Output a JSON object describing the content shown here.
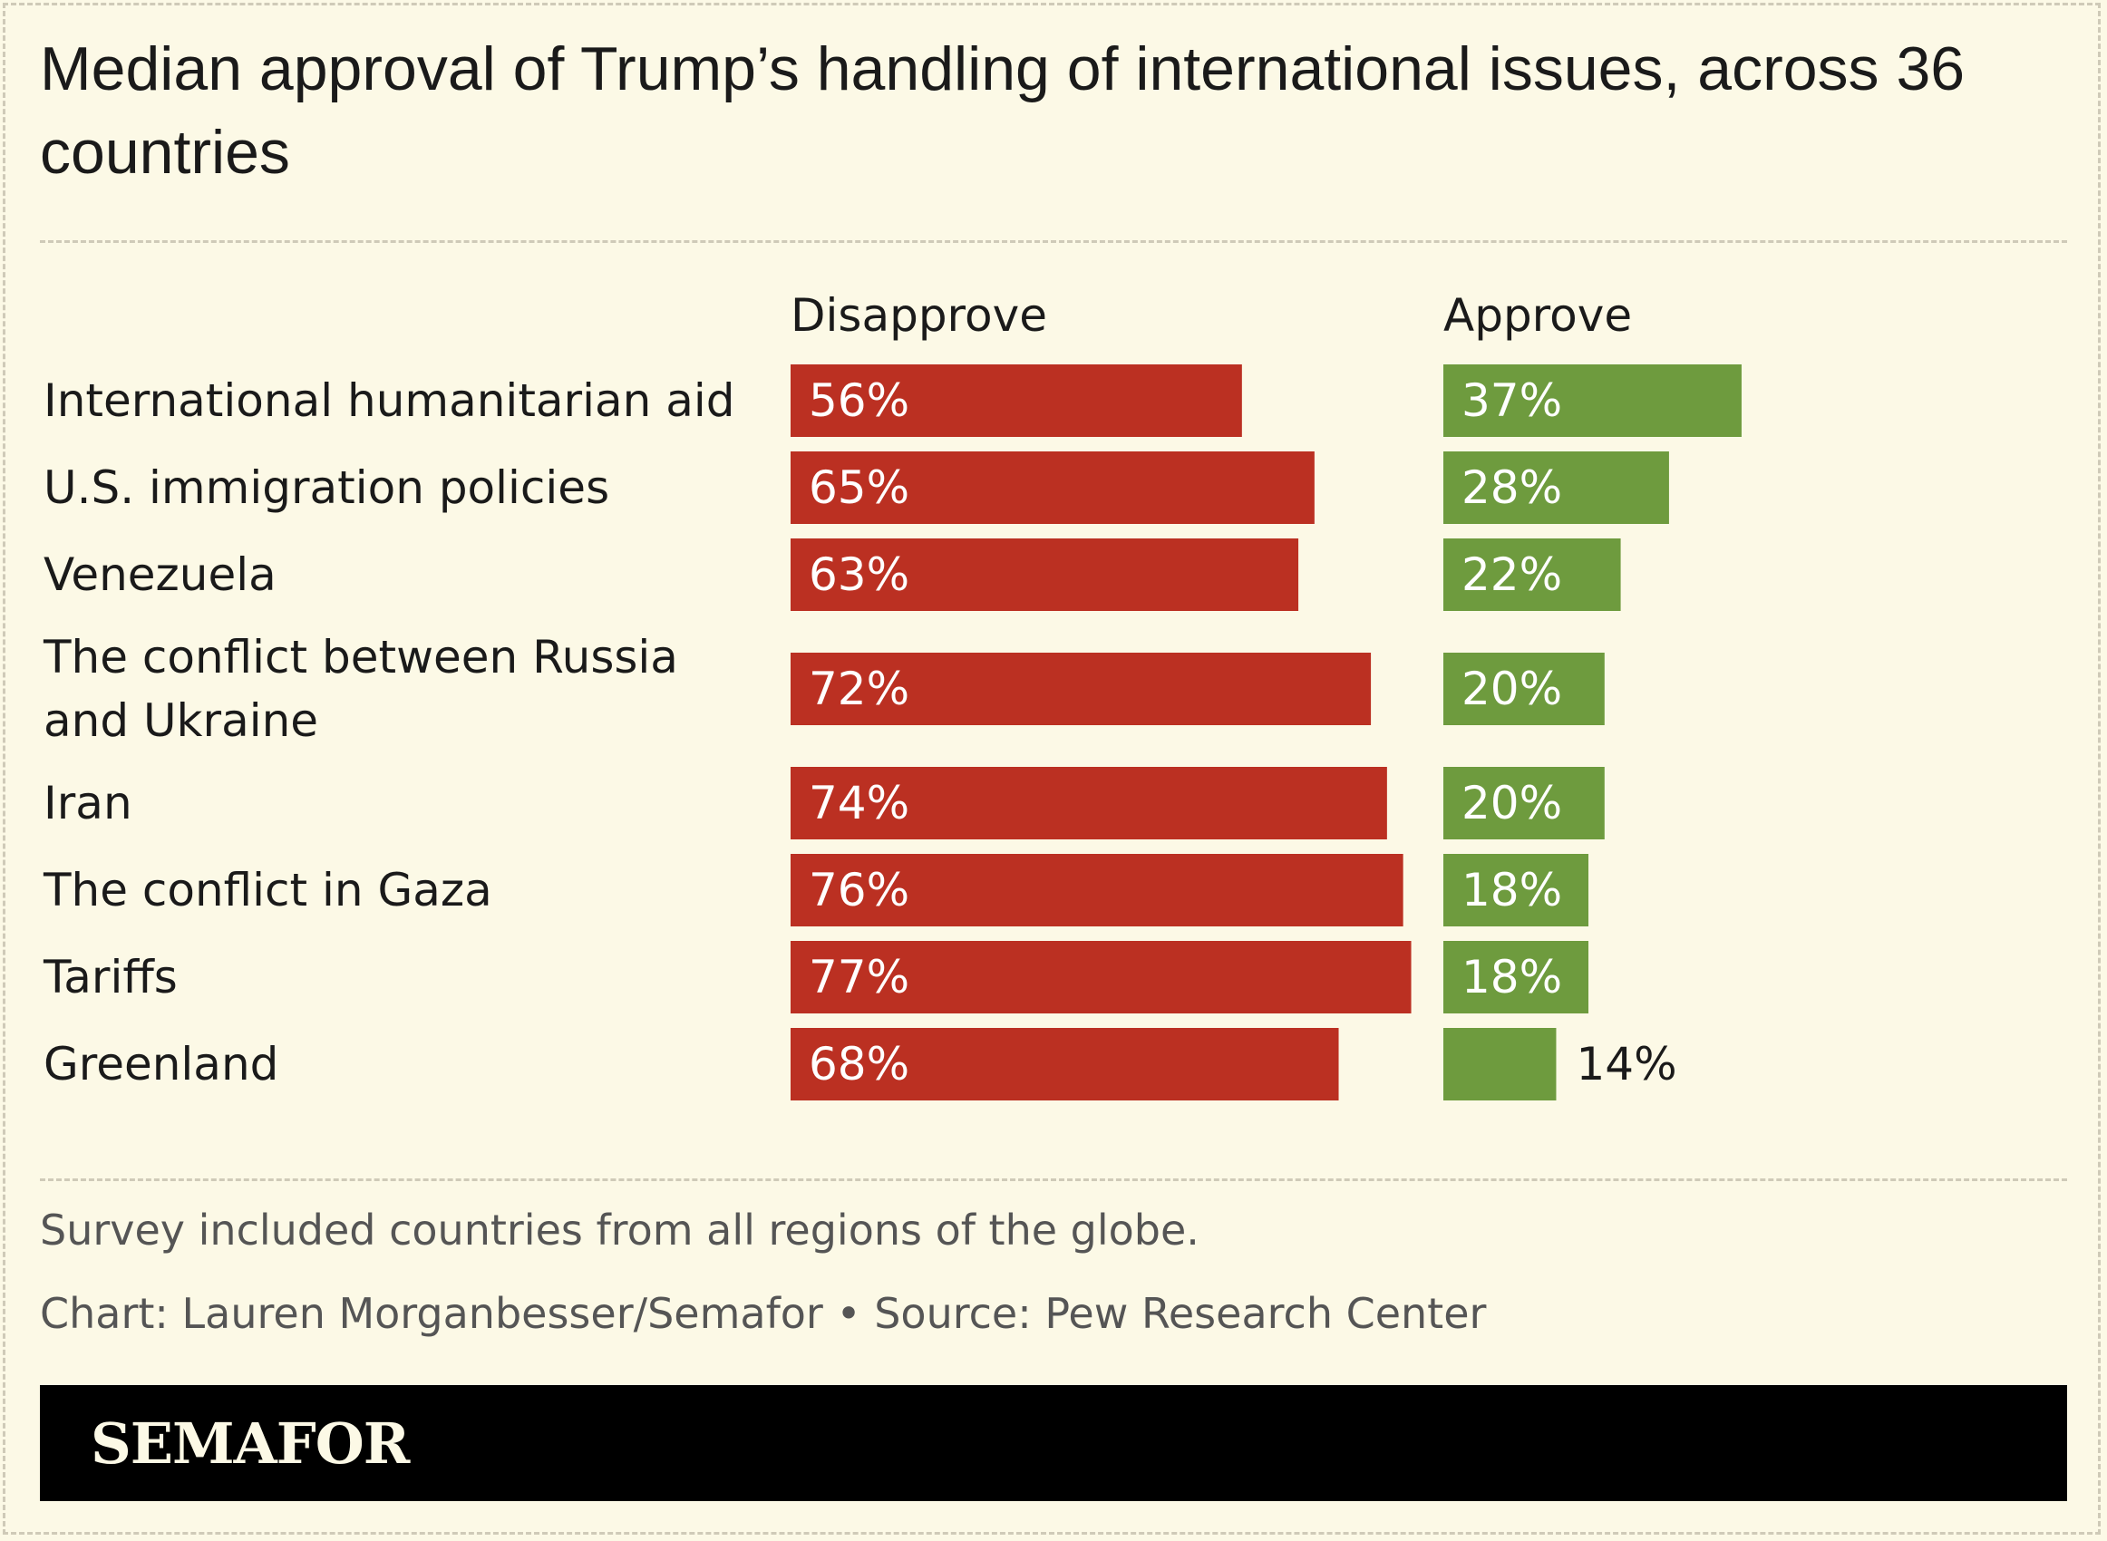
{
  "header": {
    "title": "Median approval of Trump’s handling of international issues, across 36 countries"
  },
  "chart_data": {
    "type": "bar",
    "categories": [
      "International humanitarian aid",
      "U.S. immigration policies",
      "Venezuela",
      "The conflict between Russia and Ukraine",
      "Iran",
      "The conflict in Gaza",
      "Tariffs",
      "Greenland"
    ],
    "series": [
      {
        "name": "Disapprove",
        "color": "#bb3022",
        "values": [
          56,
          65,
          63,
          72,
          74,
          76,
          77,
          68
        ]
      },
      {
        "name": "Approve",
        "color": "#6e9b3e",
        "values": [
          37,
          28,
          22,
          20,
          20,
          18,
          18,
          14
        ]
      }
    ],
    "unit": "%",
    "ylim": [
      0,
      100
    ],
    "legend": "column headers above bars",
    "grid": false
  },
  "footer": {
    "note": "Survey included countries from all regions of the globe.",
    "credit": "Chart: Lauren Morganbesser/Semafor • Source: Pew Research Center",
    "logo": "SEMAFOR"
  }
}
